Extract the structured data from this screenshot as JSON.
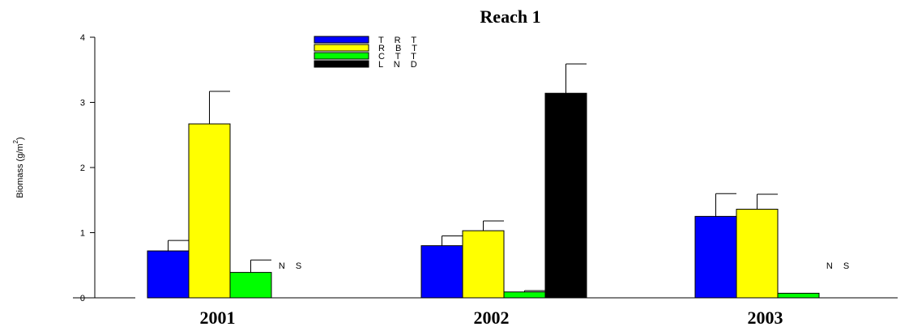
{
  "chart_data": {
    "type": "bar",
    "title": "Reach 1",
    "ylabel": "Biomass (g/m",
    "ylabel_sup": "2",
    "ylabel_close": ")",
    "xlabel": "",
    "ylim": [
      0,
      4
    ],
    "yticks": [
      0,
      1,
      2,
      3,
      4
    ],
    "grid": false,
    "legend_position": "top-center",
    "categories": [
      "2001",
      "2002",
      "2003"
    ],
    "series": [
      {
        "name": "T R T",
        "color": "#0000ff",
        "values": [
          0.72,
          0.8,
          1.25
        ],
        "errors": [
          0.16,
          0.15,
          0.35
        ]
      },
      {
        "name": "R B T",
        "color": "#ffff00",
        "values": [
          2.67,
          1.03,
          1.36
        ],
        "errors": [
          0.5,
          0.15,
          0.23
        ]
      },
      {
        "name": "C T T",
        "color": "#00ff00",
        "values": [
          0.39,
          0.09,
          0.07
        ],
        "errors": [
          0.19,
          0.02,
          0.0
        ]
      },
      {
        "name": "L N D",
        "color": "#000000",
        "values": [
          null,
          3.14,
          null
        ],
        "errors": [
          null,
          0.45,
          null
        ]
      }
    ],
    "annotations": [
      {
        "category": "2001",
        "series": "L N D",
        "text": "N S"
      },
      {
        "category": "2003",
        "series": "L N D",
        "text": "N S"
      }
    ]
  }
}
